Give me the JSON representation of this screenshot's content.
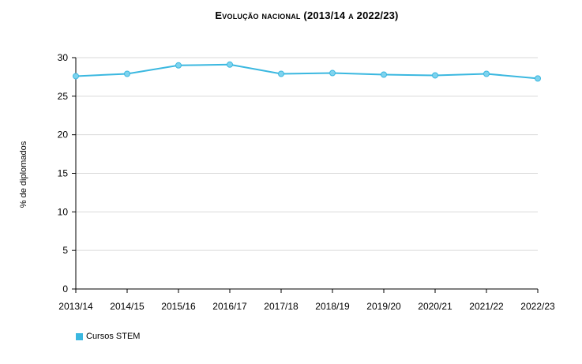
{
  "chart_data": {
    "type": "line",
    "title": "Evolução nacional (2013/14 a 2022/23)",
    "ylabel": "% de diplomados",
    "xlabel": "",
    "ylim": [
      0,
      30
    ],
    "yticks": [
      "0",
      "5",
      "10",
      "15",
      "20",
      "25",
      "30"
    ],
    "categories": [
      "2013/14",
      "2014/15",
      "2015/16",
      "2016/17",
      "2017/18",
      "2018/19",
      "2019/20",
      "2020/21",
      "2021/22",
      "2022/23"
    ],
    "series": [
      {
        "name": "Cursos STEM",
        "values": [
          27.6,
          27.9,
          29.0,
          29.1,
          27.9,
          28.0,
          27.8,
          27.7,
          27.9,
          27.3
        ]
      }
    ],
    "grid": true,
    "legend_position": "bottom-left",
    "colors": {
      "series": "#3BB8E0",
      "grid": "#d9d9d9",
      "axis": "#000000"
    }
  }
}
